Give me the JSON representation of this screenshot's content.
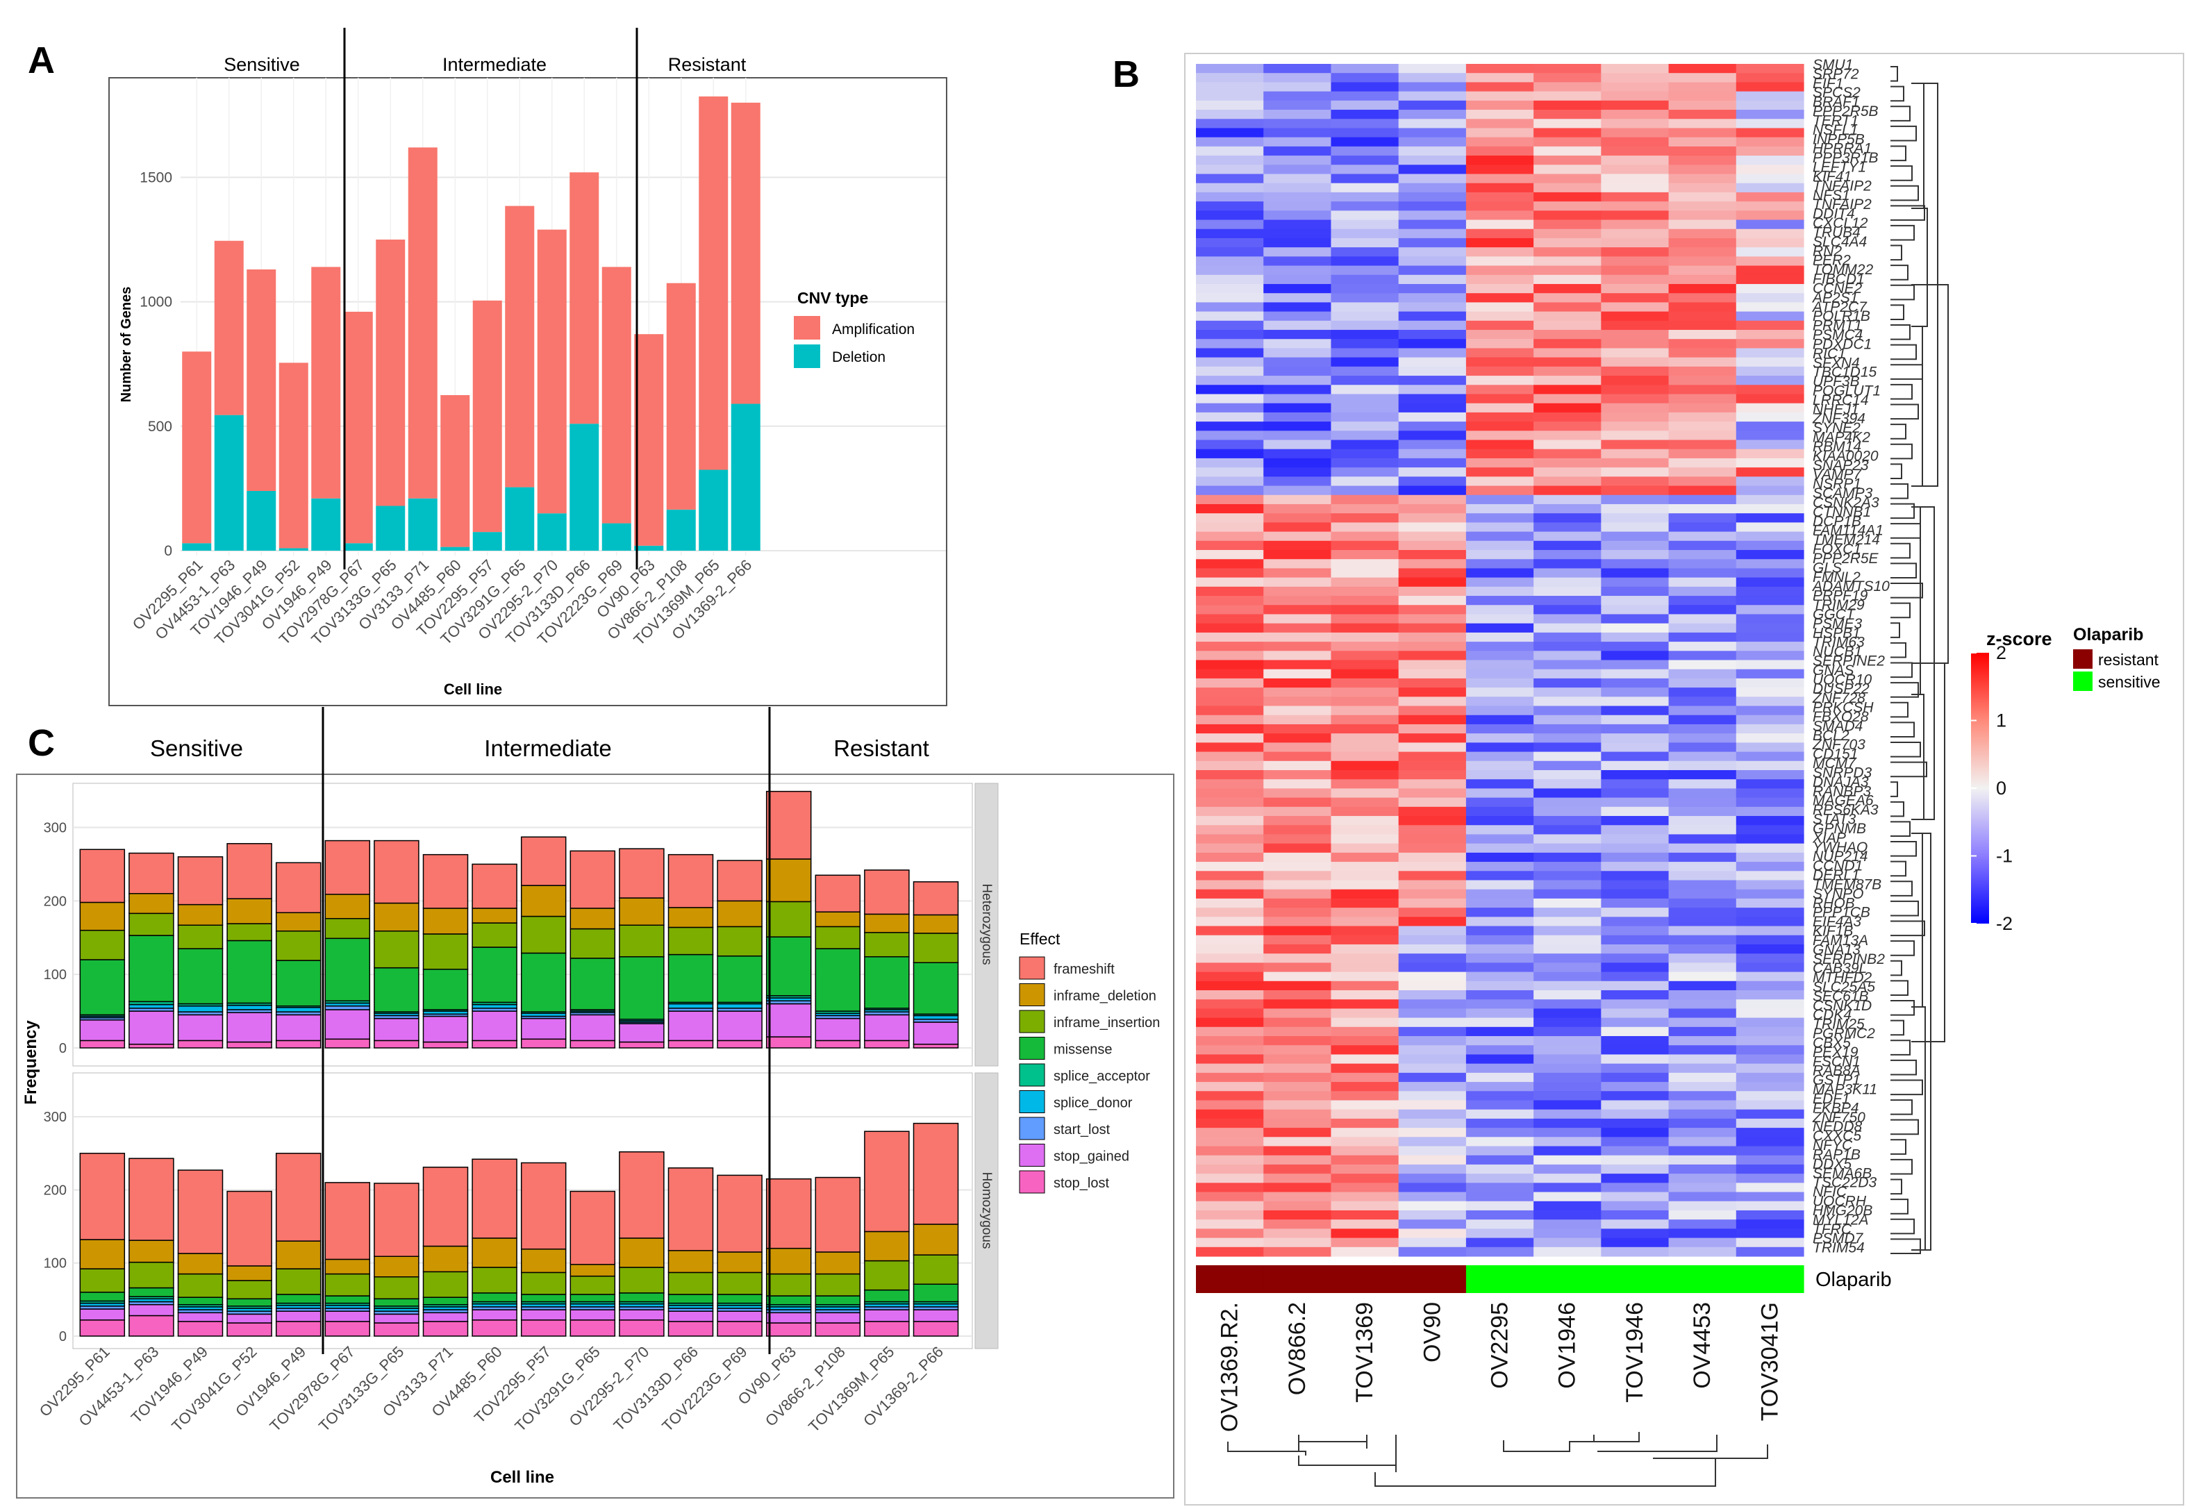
{
  "colors": {
    "amplification": "#F8766D",
    "deletion": "#00BFC4",
    "frameshift": "#F8766D",
    "inframe_deletion": "#CD9600",
    "inframe_insertion": "#7CAE00",
    "missense": "#16BA3A",
    "splice_acceptor": "#00C08B",
    "splice_donor": "#00B8E7",
    "start_lost": "#619CFF",
    "stop_gained": "#DE6FF2",
    "stop_lost": "#F763C0",
    "resistant": "#8B0000",
    "sensitive": "#00FF00"
  },
  "panel_a": {
    "letter": "A",
    "groups": [
      "Sensitive",
      "Intermediate",
      "Resistant"
    ],
    "chart_data": {
      "type": "bar",
      "stacked": true,
      "categories": [
        "OV2295_P61",
        "OV4453-1_P63",
        "TOV1946_P49",
        "TOV3041G_P52",
        "OV1946_P49",
        "TOV2978G_P67",
        "TOV3133G_P65",
        "OV3133_P71",
        "OV4485_P60",
        "TOV2295_P57",
        "TOV3291G_P65",
        "OV2295-2_P70",
        "TOV3133D_P66",
        "TOV2223G_P69",
        "OV90_P63",
        "OV866-2_P108",
        "TOV1369M_P65",
        "OV1369-2_P66"
      ],
      "series": [
        {
          "name": "Amplification",
          "values": [
            770,
            700,
            890,
            745,
            930,
            930,
            1070,
            1410,
            610,
            930,
            1130,
            1140,
            1010,
            1030,
            850,
            910,
            1500,
            1210
          ]
        },
        {
          "name": "Deletion",
          "values": [
            30,
            545,
            240,
            10,
            210,
            30,
            180,
            210,
            15,
            75,
            255,
            150,
            510,
            110,
            20,
            165,
            325,
            590
          ]
        }
      ],
      "title": "",
      "xlabel": "Cell line",
      "ylabel": "Number of Genes",
      "ylim": [
        0,
        1900
      ],
      "yticks": [
        0,
        500,
        1000,
        1500
      ],
      "legend_title": "CNV type",
      "legend_labels": [
        "Amplification",
        "Deletion"
      ],
      "legend_position": "right"
    }
  },
  "panel_b": {
    "letter": "B",
    "chart_data": {
      "type": "heatmap",
      "columns": [
        "OV1369.R2.",
        "OV866.2",
        "TOV1369",
        "OV90",
        "OV2295",
        "OV1946",
        "TOV1946",
        "OV4453",
        "TOV3041G"
      ],
      "column_group": [
        "resistant",
        "resistant",
        "resistant",
        "resistant",
        "sensitive",
        "sensitive",
        "sensitive",
        "sensitive",
        "sensitive"
      ],
      "n_rows": 130,
      "row_labels_visible": [
        "SMU1",
        "SRP72",
        "EIF1",
        "SPCS2",
        "BRAF1",
        "PPP2R5B",
        "TERT1",
        "NSFL1",
        "INPP5B",
        "HPRRA1",
        "PPP3R1B",
        "LEFTY1",
        "KIF41",
        "TNFAIP2",
        "NFS1",
        "TNFAIP2",
        "DDIT4",
        "CXCL12",
        "TRUB4",
        "SLC4A4",
        "RN2",
        "PER2",
        "TOMM22",
        "FIBCD1",
        "CCNE2",
        "AP2S1",
        "ATP2C7",
        "POLR1B",
        "PRMT1",
        "PSMC4",
        "PDXDC1",
        "RIC1",
        "SFXN4",
        "TBC1D15",
        "UPF3B",
        "POGLUT1",
        "LRRC14",
        "NHEJ1",
        "ZNF394",
        "SYNE2",
        "MAP4K2",
        "RBM14",
        "KIAA0020",
        "SNAP23",
        "VAMP7",
        "NSRP1",
        "SCAMP3",
        "CSNK2A3",
        "CTNNB1",
        "DCP1B",
        "FAM114A1",
        "TMEM214",
        "FOXC1",
        "PPP2R5E",
        "GLS",
        "FMNL2",
        "ADAMTS10",
        "PRPF19",
        "TRIM29",
        "GGCT",
        "PSME3",
        "HSPB1",
        "TRIM63",
        "NUCB1",
        "SERPINE2",
        "GNAS",
        "UQCR10",
        "DUSP22",
        "ZNF728",
        "PRKCSH",
        "FBXO28",
        "SMAD4",
        "BCL2",
        "ZNF703",
        "CD151",
        "MCM7",
        "SNRPD3",
        "DNAJA3",
        "RANBP3",
        "MAGEA6",
        "RPS6KA3",
        "STAT3",
        "GPNMB",
        "XIAP",
        "YWHAQ",
        "NUP214",
        "CCND1",
        "DERL1",
        "TMEM87B",
        "SYNPO",
        "RHOB",
        "PPP1CB",
        "EIF4A3",
        "KIF1B",
        "FAM13A",
        "GNA13",
        "SERPINB2",
        "CAB39L",
        "MTHFD2",
        "SLC25A5",
        "SEC61B",
        "CSNK1D",
        "CDK4",
        "TRIM25",
        "PGRMC2",
        "CBX5",
        "PEX19",
        "FSCN1",
        "RAB8A",
        "GSTP1",
        "MAP3K11",
        "EDF1",
        "FKBP4",
        "ZNF750",
        "NEDD8",
        "CXXC5",
        "NFYC",
        "RAP1B",
        "DDX5",
        "SEMA6B",
        "TSC22D3",
        "NFIC",
        "UQCRH",
        "HMG20B",
        "MYL12A",
        "TFRC",
        "PSMD7",
        "TRIM54"
      ],
      "legend_title": "z-score",
      "legend_ticks": [
        2,
        1,
        0,
        -1,
        -2
      ],
      "value_range": [
        -2,
        2
      ],
      "annotation_title": "Olaparib",
      "annotation_labels": [
        "resistant",
        "sensitive"
      ],
      "annotation_track_label": "Olaparib"
    }
  },
  "panel_c": {
    "letter": "C",
    "groups": [
      "Sensitive",
      "Intermediate",
      "Resistant"
    ],
    "chart_data": {
      "type": "bar",
      "stacked": true,
      "categories": [
        "OV2295_P61",
        "OV4453-1_P63",
        "TOV1946_P49",
        "TOV3041G_P52",
        "OV1946_P49",
        "TOV2978G_P67",
        "TOV3133G_P65",
        "OV3133_P71",
        "OV4485_P60",
        "TOV2295_P57",
        "TOV3291G_P65",
        "OV2295-2_P70",
        "TOV3133D_P66",
        "TOV2223G_P69",
        "OV90_P63",
        "OV866-2_P108",
        "TOV1369M_P65",
        "OV1369-2_P66"
      ],
      "facets": [
        {
          "name": "Heterozygous",
          "series": [
            {
              "name": "stop_lost",
              "values": [
                10,
                5,
                10,
                8,
                10,
                12,
                10,
                8,
                10,
                12,
                10,
                8,
                10,
                10,
                15,
                10,
                10,
                5
              ]
            },
            {
              "name": "stop_gained",
              "values": [
                28,
                45,
                35,
                40,
                35,
                40,
                30,
                35,
                40,
                28,
                35,
                25,
                40,
                40,
                45,
                30,
                35,
                30
              ]
            },
            {
              "name": "start_lost",
              "values": [
                3,
                4,
                4,
                4,
                4,
                5,
                4,
                3,
                4,
                3,
                3,
                2,
                4,
                4,
                4,
                4,
                4,
                4
              ]
            },
            {
              "name": "splice_donor",
              "values": [
                2,
                5,
                8,
                6,
                6,
                4,
                3,
                4,
                5,
                4,
                2,
                2,
                6,
                6,
                4,
                3,
                3,
                5
              ]
            },
            {
              "name": "splice_acceptor",
              "values": [
                2,
                4,
                3,
                3,
                2,
                3,
                2,
                2,
                3,
                2,
                2,
                2,
                2,
                2,
                3,
                3,
                2,
                2
              ]
            },
            {
              "name": "missense",
              "values": [
                75,
                90,
                75,
                85,
                62,
                85,
                60,
                55,
                75,
                80,
                70,
                85,
                65,
                63,
                80,
                85,
                70,
                70
              ]
            },
            {
              "name": "inframe_insertion",
              "values": [
                40,
                30,
                32,
                23,
                40,
                27,
                50,
                48,
                33,
                50,
                40,
                43,
                37,
                40,
                48,
                30,
                33,
                40
              ]
            },
            {
              "name": "inframe_deletion",
              "values": [
                38,
                27,
                28,
                34,
                25,
                33,
                38,
                35,
                20,
                42,
                28,
                37,
                27,
                35,
                58,
                20,
                25,
                25
              ]
            },
            {
              "name": "frameshift",
              "values": [
                72,
                55,
                65,
                75,
                68,
                73,
                85,
                73,
                60,
                66,
                78,
                67,
                72,
                55,
                92,
                50,
                60,
                45
              ]
            }
          ]
        },
        {
          "name": "Homozygous",
          "series": [
            {
              "name": "stop_lost",
              "values": [
                22,
                28,
                20,
                18,
                20,
                20,
                18,
                20,
                22,
                22,
                22,
                22,
                20,
                20,
                18,
                18,
                20,
                20
              ]
            },
            {
              "name": "stop_gained",
              "values": [
                15,
                15,
                12,
                12,
                14,
                14,
                12,
                12,
                14,
                14,
                14,
                14,
                14,
                14,
                14,
                14,
                16,
                16
              ]
            },
            {
              "name": "start_lost",
              "values": [
                4,
                4,
                4,
                4,
                4,
                4,
                4,
                4,
                4,
                4,
                4,
                4,
                4,
                4,
                4,
                4,
                4,
                4
              ]
            },
            {
              "name": "splice_donor",
              "values": [
                4,
                4,
                4,
                4,
                4,
                4,
                4,
                4,
                4,
                4,
                4,
                4,
                4,
                4,
                4,
                4,
                4,
                4
              ]
            },
            {
              "name": "splice_acceptor",
              "values": [
                3,
                3,
                3,
                3,
                3,
                3,
                3,
                3,
                3,
                3,
                3,
                3,
                3,
                3,
                3,
                3,
                3,
                3
              ]
            },
            {
              "name": "missense",
              "values": [
                12,
                12,
                10,
                10,
                12,
                10,
                10,
                10,
                12,
                10,
                10,
                12,
                12,
                12,
                12,
                12,
                16,
                24
              ]
            },
            {
              "name": "inframe_insertion",
              "values": [
                32,
                35,
                32,
                25,
                35,
                30,
                30,
                35,
                35,
                30,
                25,
                35,
                30,
                30,
                30,
                30,
                40,
                40
              ]
            },
            {
              "name": "inframe_deletion",
              "values": [
                40,
                30,
                28,
                20,
                38,
                20,
                28,
                35,
                40,
                32,
                16,
                40,
                30,
                28,
                35,
                30,
                40,
                42
              ]
            },
            {
              "name": "frameshift",
              "values": [
                118,
                112,
                114,
                102,
                120,
                105,
                100,
                108,
                108,
                118,
                100,
                118,
                113,
                105,
                95,
                102,
                137,
                138
              ]
            }
          ]
        }
      ],
      "title": "",
      "xlabel": "Cell line",
      "ylabel": "Frequency",
      "ylim": [
        0,
        360
      ],
      "yticks": [
        0,
        100,
        200,
        300
      ],
      "legend_title": "Effect",
      "legend_labels": [
        "frameshift",
        "inframe_deletion",
        "inframe_insertion",
        "missense",
        "splice_acceptor",
        "splice_donor",
        "start_lost",
        "stop_gained",
        "stop_lost"
      ],
      "legend_position": "right"
    }
  }
}
